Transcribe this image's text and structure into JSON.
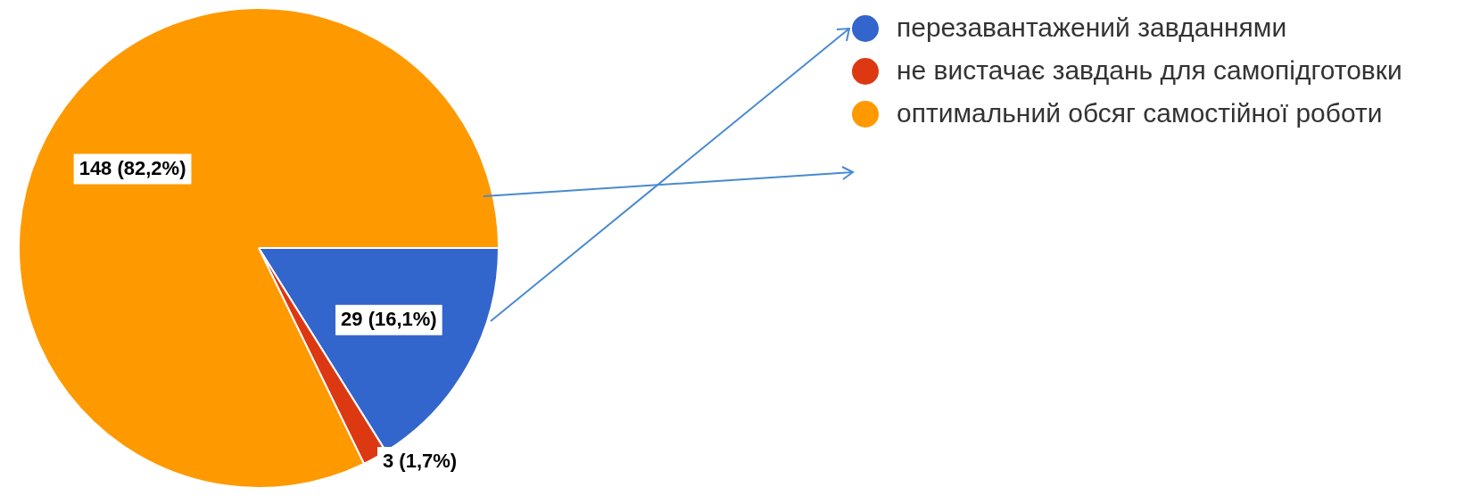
{
  "chart_data": {
    "type": "pie",
    "categories": [
      "перезавантажений завданнями",
      "не вистачає завдань для самопідготовки",
      "оптимальний обсяг самостійної роботи"
    ],
    "values": [
      29,
      3,
      148
    ],
    "colors": [
      "#3366cc",
      "#dc3912",
      "#ff9900"
    ],
    "value_labels": [
      "29 (16,1%)",
      "3 (1,7%)",
      "148 (82,2%)"
    ],
    "legend": "top right"
  }
}
